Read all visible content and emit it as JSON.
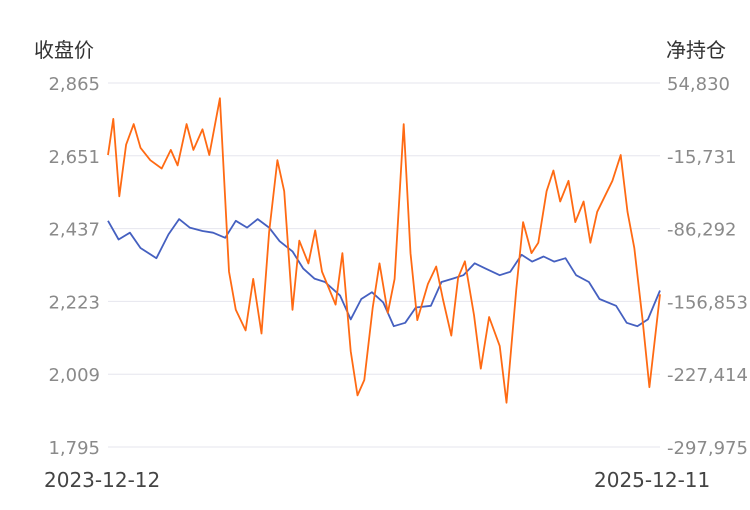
{
  "chart_data": {
    "type": "line",
    "left_axis_title": "收盘价",
    "right_axis_title": "净持仓",
    "x_start_label": "2023-12-12",
    "x_end_label": "2025-12-11",
    "left_ticks": [
      "2,865",
      "2,651",
      "2,437",
      "2,223",
      "2,009",
      "1,795"
    ],
    "right_ticks": [
      "54,830",
      "-15,731",
      "-86,292",
      "-156,853",
      "-227,414",
      "-297,975"
    ],
    "left_range": [
      1795,
      2865
    ],
    "right_range": [
      -297975,
      54830
    ],
    "grid": true,
    "series": [
      {
        "axis": "left",
        "color": "#4560c0",
        "x": [
          "2023-12-12",
          "2023-12-26",
          "2024-01-10",
          "2024-01-24",
          "2024-02-14",
          "2024-03-01",
          "2024-03-15",
          "2024-03-29",
          "2024-04-15",
          "2024-04-29",
          "2024-05-15",
          "2024-05-29",
          "2024-06-13",
          "2024-06-27",
          "2024-07-12",
          "2024-07-26",
          "2024-08-12",
          "2024-08-26",
          "2024-09-10",
          "2024-09-24",
          "2024-10-14",
          "2024-10-28",
          "2024-11-11",
          "2024-11-25",
          "2024-12-10",
          "2024-12-24",
          "2025-01-08",
          "2025-01-22",
          "2025-02-11",
          "2025-02-25",
          "2025-03-12",
          "2025-03-26",
          "2025-04-10",
          "2025-04-24",
          "2025-05-13",
          "2025-05-27",
          "2025-06-11",
          "2025-06-25",
          "2025-07-10",
          "2025-07-24",
          "2025-08-08",
          "2025-08-22",
          "2025-09-08",
          "2025-09-22",
          "2025-10-14",
          "2025-10-28",
          "2025-11-11",
          "2025-11-25",
          "2025-12-11"
        ],
        "values": [
          2460,
          2405,
          2425,
          2380,
          2350,
          2420,
          2465,
          2440,
          2430,
          2425,
          2410,
          2460,
          2440,
          2465,
          2440,
          2400,
          2370,
          2320,
          2290,
          2280,
          2240,
          2170,
          2230,
          2250,
          2220,
          2150,
          2160,
          2205,
          2210,
          2280,
          2290,
          2300,
          2335,
          2320,
          2300,
          2310,
          2360,
          2340,
          2355,
          2340,
          2350,
          2300,
          2280,
          2230,
          2210,
          2160,
          2150,
          2170,
          2255
        ]
      },
      {
        "axis": "right",
        "color": "#ff6a13",
        "x": [
          "2023-12-12",
          "2023-12-19",
          "2023-12-27",
          "2024-01-05",
          "2024-01-15",
          "2024-01-24",
          "2024-02-06",
          "2024-02-21",
          "2024-03-04",
          "2024-03-13",
          "2024-03-25",
          "2024-04-03",
          "2024-04-15",
          "2024-04-24",
          "2024-05-08",
          "2024-05-20",
          "2024-05-29",
          "2024-06-11",
          "2024-06-21",
          "2024-07-02",
          "2024-07-12",
          "2024-07-23",
          "2024-08-01",
          "2024-08-12",
          "2024-08-21",
          "2024-09-02",
          "2024-09-11",
          "2024-09-20",
          "2024-10-08",
          "2024-10-17",
          "2024-10-28",
          "2024-11-06",
          "2024-11-15",
          "2024-11-26",
          "2024-12-05",
          "2024-12-16",
          "2024-12-25",
          "2025-01-06",
          "2025-01-15",
          "2025-01-24",
          "2025-02-07",
          "2025-02-18",
          "2025-02-27",
          "2025-03-10",
          "2025-03-19",
          "2025-03-28",
          "2025-04-09",
          "2025-04-18",
          "2025-04-29",
          "2025-05-13",
          "2025-05-22",
          "2025-06-04",
          "2025-06-13",
          "2025-06-24",
          "2025-07-03",
          "2025-07-14",
          "2025-07-23",
          "2025-08-01",
          "2025-08-12",
          "2025-08-21",
          "2025-09-01",
          "2025-09-10",
          "2025-09-19",
          "2025-10-09",
          "2025-10-20",
          "2025-10-29",
          "2025-11-07",
          "2025-11-18",
          "2025-11-27",
          "2025-12-11"
        ],
        "values": [
          -15000,
          20000,
          -55000,
          -5000,
          15000,
          -8000,
          -20000,
          -28000,
          -10000,
          -25000,
          15000,
          -10000,
          10000,
          -15000,
          40000,
          -128000,
          -165000,
          -185000,
          -135000,
          -188000,
          -90000,
          -20000,
          -50000,
          -165000,
          -98000,
          -120000,
          -88000,
          -128000,
          -160000,
          -110000,
          -205000,
          -248000,
          -233000,
          -163000,
          -120000,
          -168000,
          -135000,
          15000,
          -110000,
          -175000,
          -140000,
          -123000,
          -155000,
          -190000,
          -134000,
          -118000,
          -170000,
          -222000,
          -172000,
          -200000,
          -255000,
          -145000,
          -80000,
          -110000,
          -100000,
          -50000,
          -30000,
          -60000,
          -40000,
          -80000,
          -60000,
          -100000,
          -70000,
          -40000,
          -15000,
          -70000,
          -105000,
          -175000,
          -240000,
          -150000
        ]
      }
    ]
  }
}
